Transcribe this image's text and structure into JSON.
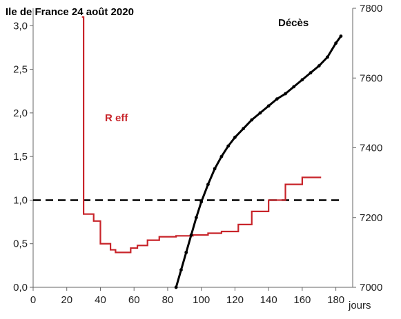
{
  "chart_data": {
    "type": "line",
    "title": "Ile de France 24 août 2020",
    "xlabel": "jours",
    "xlim": [
      0,
      190
    ],
    "x_ticks": [
      0,
      20,
      40,
      60,
      80,
      100,
      120,
      140,
      160,
      180
    ],
    "y_left": {
      "range": [
        0,
        3.2
      ],
      "ticks": [
        "0,0",
        "0,5",
        "1,0",
        "1,5",
        "2,0",
        "2,5",
        "3,0"
      ],
      "tick_values": [
        0,
        0.5,
        1.0,
        1.5,
        2.0,
        2.5,
        3.0
      ]
    },
    "y_right": {
      "range": [
        7000,
        7800
      ],
      "ticks": [
        "7000",
        "7200",
        "7400",
        "7600",
        "7800"
      ],
      "tick_values": [
        7000,
        7200,
        7400,
        7600,
        7800
      ]
    },
    "reference_line": {
      "y": 1.0,
      "axis": "left",
      "style": "dashed",
      "color": "#000000"
    },
    "series": [
      {
        "name": "R eff",
        "axis": "left",
        "color": "#c8242a",
        "style": "step",
        "x": [
          29,
          30,
          36,
          40,
          46,
          49,
          58,
          62,
          68,
          75,
          85,
          95,
          104,
          112,
          122,
          130,
          140,
          150,
          160,
          170
        ],
        "values": [
          3.1,
          0.84,
          0.76,
          0.5,
          0.43,
          0.4,
          0.45,
          0.48,
          0.54,
          0.58,
          0.59,
          0.6,
          0.62,
          0.64,
          0.72,
          0.87,
          1.0,
          1.18,
          1.26,
          1.26
        ]
      },
      {
        "name": "Décès",
        "axis": "right",
        "color": "#000000",
        "style": "line-with-points",
        "x": [
          85,
          88,
          91,
          94,
          97,
          100,
          104,
          108,
          112,
          116,
          120,
          125,
          130,
          135,
          140,
          145,
          150,
          155,
          160,
          165,
          170,
          175,
          180,
          183
        ],
        "values": [
          7000,
          7050,
          7100,
          7150,
          7200,
          7245,
          7295,
          7340,
          7375,
          7405,
          7430,
          7455,
          7480,
          7500,
          7520,
          7540,
          7555,
          7575,
          7595,
          7615,
          7635,
          7660,
          7700,
          7720
        ]
      }
    ]
  }
}
